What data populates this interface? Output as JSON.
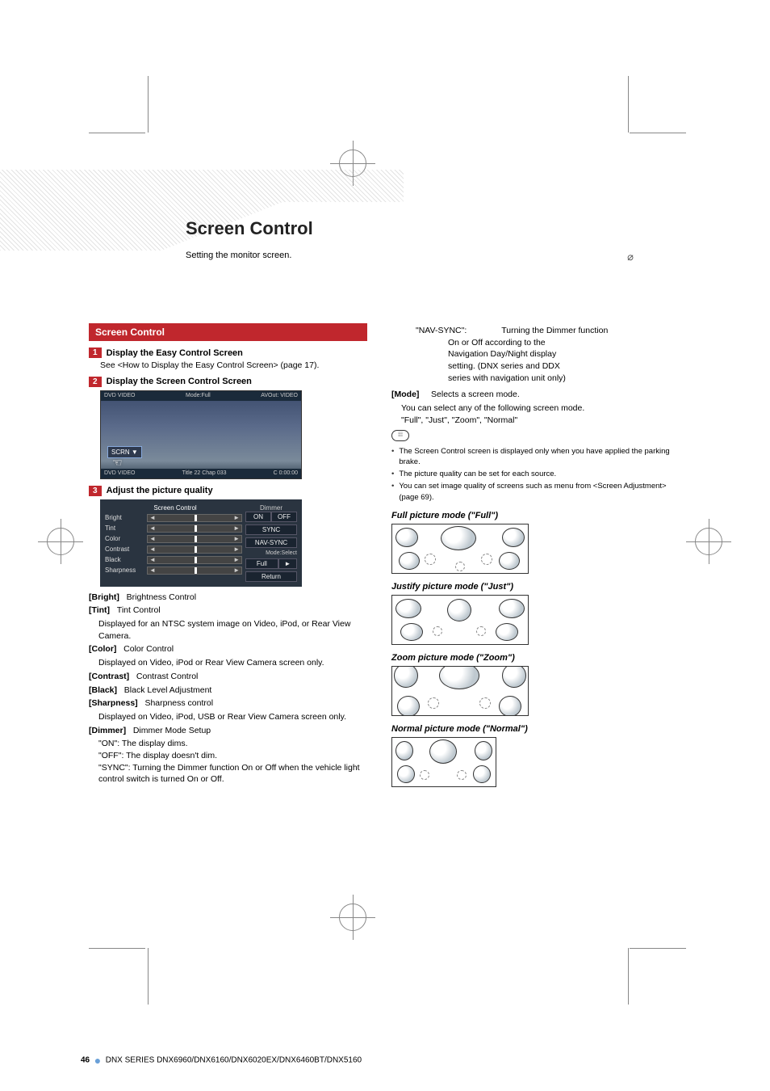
{
  "page": {
    "title": "Screen Control",
    "subtitle": "Setting the monitor screen.",
    "page_number": "46",
    "footer_series": "DNX SERIES   DNX6960/DNX6160/DNX6020EX/DNX6460BT/DNX5160"
  },
  "section_header": "Screen Control",
  "steps": [
    {
      "num": "1",
      "label": "Display the Easy Control Screen"
    },
    {
      "num": "2",
      "label": "Display the Screen Control Screen"
    },
    {
      "num": "3",
      "label": "Adjust the picture quality"
    }
  ],
  "step1_body": "See <How to Display the Easy Control Screen> (page 17).",
  "video_panel": {
    "topbar_left": "DVD VIDEO",
    "topbar_mid": "Mode:Full",
    "topbar_right": "AVOut: VIDEO",
    "botbar_left": "DVD VIDEO",
    "botbar_mid": "Title 22    Chap 033",
    "botbar_right": "C  0:00:00",
    "scrn_btn": "SCRN ▼"
  },
  "control_panel": {
    "title": "Screen Control",
    "rows": [
      "Bright",
      "Tint",
      "Color",
      "Contrast",
      "Black",
      "Sharpness"
    ],
    "right_dimmer_label": "Dimmer",
    "right_on": "ON",
    "right_off": "OFF",
    "right_sync": "SYNC",
    "right_navsync": "NAV-SYNC",
    "right_mode": "Mode:Select",
    "right_full": "Full",
    "right_return": "Return",
    "bg_color": "#2a3440",
    "text_color": "#dddddd"
  },
  "definitions": [
    {
      "tag": "[Bright]",
      "desc": "Brightness Control",
      "sub": []
    },
    {
      "tag": "[Tint]",
      "desc": "Tint Control",
      "sub": [
        "Displayed for an NTSC system image on Video, iPod, or Rear View Camera."
      ]
    },
    {
      "tag": "[Color]",
      "desc": "Color Control",
      "sub": [
        "Displayed on Video, iPod or Rear View Camera screen only."
      ]
    },
    {
      "tag": "[Contrast]",
      "desc": "Contrast Control",
      "sub": []
    },
    {
      "tag": "[Black]",
      "desc": "Black Level Adjustment",
      "sub": []
    },
    {
      "tag": "[Sharpness]",
      "desc": "Sharpness control",
      "sub": [
        "Displayed on Video, iPod, USB or Rear View Camera screen only."
      ]
    },
    {
      "tag": "[Dimmer]",
      "desc": "Dimmer Mode Setup",
      "sub": [
        "\"ON\": The display dims.",
        "\"OFF\": The display doesn't dim.",
        "\"SYNC\": Turning the Dimmer function On or Off when the vehicle light control switch is turned On or Off."
      ]
    }
  ],
  "right_col": {
    "nav_sync_line": "\"NAV-SYNC\": Turning the Dimmer function On or Off according to the Navigation Day/Night display setting. (DNX series and DDX series with navigation unit only)",
    "mode_tag": "[Mode]",
    "mode_desc": "Selects a screen mode.",
    "mode_sub1": "You can select any of the following screen mode.",
    "mode_sub2": "\"Full\", \"Just\", \"Zoom\", \"Normal\"",
    "notes": [
      "The Screen Control screen is displayed only when you have applied the parking brake.",
      "The picture quality can be set for each source.",
      "You can set image quality of screens such as menu from <Screen Adjustment> (page 69)."
    ],
    "modes": [
      {
        "heading": "Full picture mode (\"Full\")",
        "type": "full"
      },
      {
        "heading": "Justify picture mode (\"Just\")",
        "type": "just"
      },
      {
        "heading": "Zoom picture mode (\"Zoom\")",
        "type": "zoom"
      },
      {
        "heading": "Normal picture mode (\"Normal\")",
        "type": "normal"
      }
    ]
  },
  "colors": {
    "accent_red": "#c0272d",
    "footer_blue_dot": "#6aa0d8"
  }
}
